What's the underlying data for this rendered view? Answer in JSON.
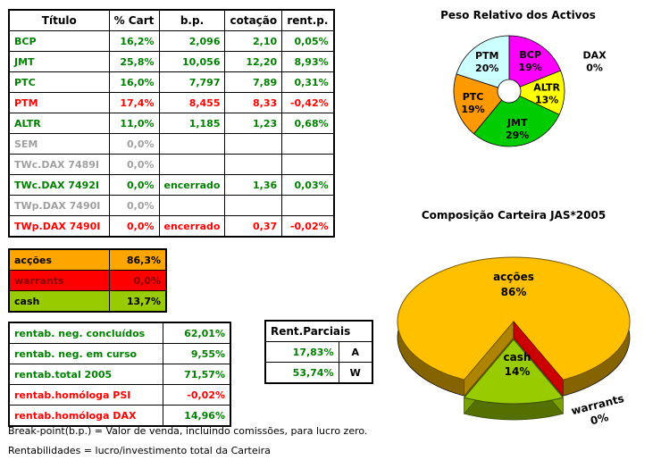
{
  "colors": {
    "positive": "#008000",
    "negative": "#FF0000",
    "inactive": "#A0A0A0",
    "table_border": "#000000",
    "background": "#FFFFFF"
  },
  "portfolio_table": {
    "headers": [
      "Título",
      "% Cart",
      "b.p.",
      "cotação",
      "rent.p."
    ],
    "rows": [
      {
        "cells": [
          "BCP",
          "16,2%",
          "2,096",
          "2,10",
          "0,05%"
        ],
        "status": "positive"
      },
      {
        "cells": [
          "JMT",
          "25,8%",
          "10,056",
          "12,20",
          "8,93%"
        ],
        "status": "positive"
      },
      {
        "cells": [
          "PTC",
          "16,0%",
          "7,797",
          "7,89",
          "0,31%"
        ],
        "status": "positive"
      },
      {
        "cells": [
          "PTM",
          "17,4%",
          "8,455",
          "8,33",
          "-0,42%"
        ],
        "status": "negative"
      },
      {
        "cells": [
          "ALTR",
          "11,0%",
          "1,185",
          "1,23",
          "0,68%"
        ],
        "status": "positive"
      },
      {
        "cells": [
          "SEM",
          "0,0%",
          "",
          "",
          ""
        ],
        "status": "inactive"
      },
      {
        "cells": [
          "TWc.DAX 7489I",
          "0,0%",
          "",
          "",
          ""
        ],
        "status": "inactive"
      },
      {
        "cells": [
          "TWc.DAX 7492I",
          "0,0%",
          "encerrado",
          "1,36",
          "0,03%"
        ],
        "status": "positive"
      },
      {
        "cells": [
          "TWp.DAX 7490I",
          "0,0%",
          "",
          "",
          ""
        ],
        "status": "inactive"
      },
      {
        "cells": [
          "TWp.DAX 7490I",
          "0,0%",
          "encerrado",
          "0,37",
          "-0,02%"
        ],
        "status": "negative"
      }
    ]
  },
  "allocation_table": {
    "rows": [
      {
        "label": "acções",
        "value": "86,3%",
        "bg": "#FFA500",
        "text_color": "#000000"
      },
      {
        "label": "warrants",
        "value": "0,0%",
        "bg": "#FF0000",
        "text_color": "#8B0000"
      },
      {
        "label": "cash",
        "value": "13,7%",
        "bg": "#99CC00",
        "text_color": "#000000"
      }
    ]
  },
  "rentability_table": {
    "rows": [
      {
        "label": "rentab. neg. concluídos",
        "value": "62,01%",
        "label_color": "positive",
        "value_color": "positive",
        "bold": false
      },
      {
        "label": "rentab. neg. em curso",
        "value": "9,55%",
        "label_color": "positive",
        "value_color": "positive",
        "bold": false
      },
      {
        "label": "rentab.total 2005",
        "value": "71,57%",
        "label_color": "positive",
        "value_color": "positive",
        "bold": true
      },
      {
        "label": "rentab.homóloga PSI",
        "value": "-0,02%",
        "label_color": "negative",
        "value_color": "negative",
        "bold": true
      },
      {
        "label": "rentab.homóloga DAX",
        "value": "14,96%",
        "label_color": "negative",
        "value_color": "positive",
        "bold": true
      }
    ]
  },
  "partials_table": {
    "title": "Rent.Parciais",
    "rows": [
      {
        "value": "17,83%",
        "tag": "A"
      },
      {
        "value": "53,74%",
        "tag": "W"
      }
    ]
  },
  "footnotes": [
    "Break-point(b.p.) = Valor de venda, incluindo comissões, para lucro zero.",
    "Rentabilidades = lucro/investimento total da Carteira"
  ],
  "chart_data": [
    {
      "type": "pie",
      "subtype": "donut",
      "title": "Peso Relativo dos Activos",
      "labels": [
        "BCP",
        "DAX",
        "ALTR",
        "JMT",
        "PTC",
        "PTM"
      ],
      "values": [
        19,
        0,
        13,
        29,
        19,
        20
      ],
      "unit": "%",
      "colors": [
        "#FF00FF",
        "#FFFFFF",
        "#FFFF00",
        "#00CC00",
        "#FF9900",
        "#CCFFFF"
      ],
      "start_angle": 0,
      "legend": "none",
      "data_labels": "name-and-percent"
    },
    {
      "type": "pie",
      "subtype": "3d-exploded",
      "title": "Composição Carteira JAS*2005",
      "labels": [
        "acções",
        "warrants",
        "cash"
      ],
      "values": [
        86,
        0,
        14
      ],
      "unit": "%",
      "colors": [
        "#FFC000",
        "#CC0000",
        "#99CC00"
      ],
      "exploded_label": "cash",
      "legend": "none",
      "data_labels": "name-and-percent"
    }
  ]
}
